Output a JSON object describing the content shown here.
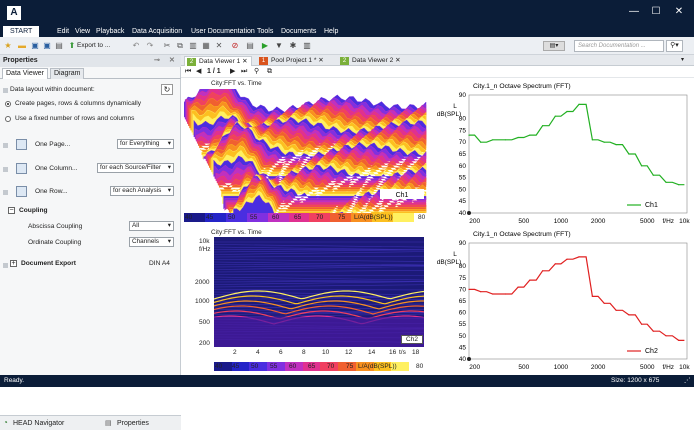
{
  "titlebar": {
    "min": "—",
    "max": "☐",
    "close": "✕"
  },
  "menu": {
    "start": "START",
    "items": [
      "Edit",
      "View",
      "Playback",
      "Data Acquisition",
      "User Documentation",
      "Tools",
      "Documents",
      "Help"
    ]
  },
  "toolbar": {
    "export_label": "Export to ...",
    "search_placeholder": "Search Documentation ...",
    "search_icon": "search-icon"
  },
  "properties": {
    "title": "Properties",
    "tabs": [
      "Data Viewer",
      "Diagram"
    ],
    "layout_label": "Data layout within document:",
    "radio_dynamic": "Create pages, rows & columns dynamically",
    "radio_fixed": "Use a fixed number of rows and columns",
    "one_page": "One Page...",
    "one_page_value": "for Everything",
    "one_column": "One Column...",
    "one_column_value": "for each Source/Filter",
    "one_row": "One Row...",
    "one_row_value": "for each Analysis",
    "coupling": "Coupling",
    "abscissa": "Abscissa Coupling",
    "abscissa_value": "All",
    "ordinate": "Ordinate Coupling",
    "ordinate_value": "Channels",
    "doc_export": "Document Export",
    "doc_export_value": "DIN A4"
  },
  "bottom": {
    "navigator": "HEAD Navigator",
    "properties": "Properties"
  },
  "doc_tabs": [
    {
      "label": "Data Viewer 1",
      "badge": "2",
      "color": "#7bb03a"
    },
    {
      "label": "Pool Project 1 *",
      "badge": "1",
      "color": "#d9541e"
    },
    {
      "label": "Data Viewer 2",
      "badge": "2",
      "color": "#7bb03a"
    }
  ],
  "nav": {
    "page": "1 / 1"
  },
  "spectro1": {
    "title": "City:FFT vs. Time",
    "channel": "Ch1",
    "colorbar_ticks": [
      "40",
      "45",
      "50",
      "55",
      "60",
      "65",
      "70",
      "75"
    ],
    "colorbar_unit": "L/A(dB(SPL))",
    "colorbar_max": "80"
  },
  "spectro2": {
    "title": "City:FFT vs. Time",
    "channel": "Ch2",
    "y_unit1": "10k",
    "y_unit2": "f/Hz",
    "yticks": [
      "2000",
      "1000",
      "500",
      "200"
    ],
    "xticks": [
      "2",
      "4",
      "6",
      "8",
      "10",
      "12",
      "14",
      "16"
    ],
    "x_unit": "t/s",
    "x_last": "18",
    "colorbar_ticks": [
      "40",
      "45",
      "50",
      "55",
      "60",
      "65",
      "70",
      "75"
    ],
    "colorbar_unit": "L/A(dB(SPL))",
    "colorbar_max": "80"
  },
  "chart_data": [
    {
      "type": "line",
      "title": "City.1_n Octave Spectrum (FFT)",
      "ylabel": "L dB(SPL)",
      "xlabel": "f/Hz",
      "x_scale": "log",
      "ylim": [
        40,
        90
      ],
      "yticks": [
        90,
        80,
        75,
        70,
        65,
        60,
        55,
        50,
        45,
        40
      ],
      "xticks": [
        "200",
        "500",
        "1000",
        "2000",
        "5000",
        "10k"
      ],
      "series": [
        {
          "name": "Ch1",
          "color": "#22b022",
          "x": [
            180,
            200,
            224,
            250,
            280,
            315,
            355,
            400,
            450,
            500,
            560,
            630,
            710,
            800,
            900,
            1000,
            1120,
            1250,
            1400,
            1600,
            1800,
            2000,
            2240,
            2500,
            2800,
            3150,
            3550,
            4000,
            4500,
            5000,
            5600,
            6300,
            7100,
            8000,
            9000,
            10000
          ],
          "values": [
            73,
            73,
            70,
            70,
            71,
            71,
            71,
            71,
            72,
            72,
            73,
            73,
            77,
            77,
            81,
            81,
            83,
            83,
            86,
            86,
            71,
            71,
            70,
            70,
            69,
            69,
            65,
            65,
            60,
            60,
            56,
            56,
            53,
            53,
            52,
            52
          ]
        }
      ]
    },
    {
      "type": "line",
      "title": "City.1_n Octave Spectrum (FFT)",
      "ylabel": "L dB(SPL)",
      "xlabel": "f/Hz",
      "x_scale": "log",
      "ylim": [
        40,
        90
      ],
      "yticks": [
        90,
        80,
        75,
        70,
        65,
        60,
        55,
        50,
        45,
        40
      ],
      "xticks": [
        "200",
        "500",
        "1000",
        "2000",
        "5000",
        "10k"
      ],
      "series": [
        {
          "name": "Ch2",
          "color": "#e02020",
          "x": [
            180,
            200,
            224,
            250,
            280,
            315,
            355,
            400,
            450,
            500,
            560,
            630,
            710,
            800,
            900,
            1000,
            1120,
            1250,
            1400,
            1600,
            1800,
            2000,
            2240,
            2500,
            2800,
            3150,
            3550,
            4000,
            4500,
            5000,
            5600,
            6300,
            7100,
            8000,
            9000,
            10000
          ],
          "values": [
            70,
            70,
            69,
            69,
            68,
            68,
            68,
            68,
            71,
            71,
            74,
            74,
            78,
            78,
            81,
            81,
            83,
            83,
            84,
            84,
            67,
            67,
            64,
            64,
            61,
            61,
            59,
            59,
            55,
            55,
            52,
            52,
            50,
            50,
            48,
            48
          ]
        }
      ]
    }
  ],
  "status": {
    "left": "Ready.",
    "right": "Size: 1200 x 675"
  }
}
